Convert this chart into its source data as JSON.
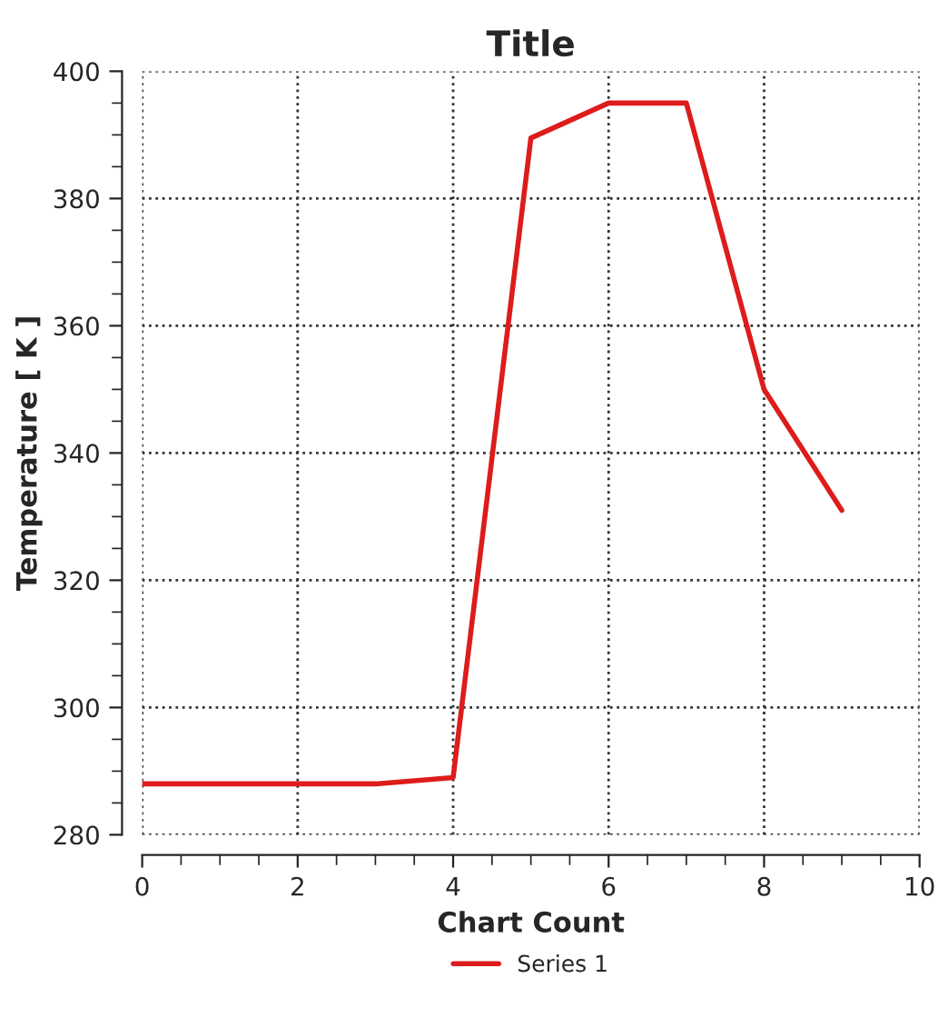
{
  "chart_data": {
    "type": "line",
    "title": "Title",
    "xlabel": "Chart Count",
    "ylabel": "Temperature [ K ]",
    "x": [
      0,
      1,
      2,
      3,
      4,
      5,
      6,
      7,
      8,
      9
    ],
    "series": [
      {
        "name": "Series 1",
        "color": "#dd1c1c",
        "values": [
          288,
          288,
          288,
          288,
          289,
          389.5,
          395,
          395,
          350,
          331
        ]
      }
    ],
    "xlim": [
      0,
      10
    ],
    "xticks": [
      0,
      2,
      4,
      6,
      8,
      10
    ],
    "ylim": [
      280,
      400
    ],
    "yticks": [
      280,
      300,
      320,
      340,
      360,
      380,
      400
    ],
    "grid": true,
    "legend": "bottom",
    "marker": "none",
    "line_style": "solid"
  }
}
